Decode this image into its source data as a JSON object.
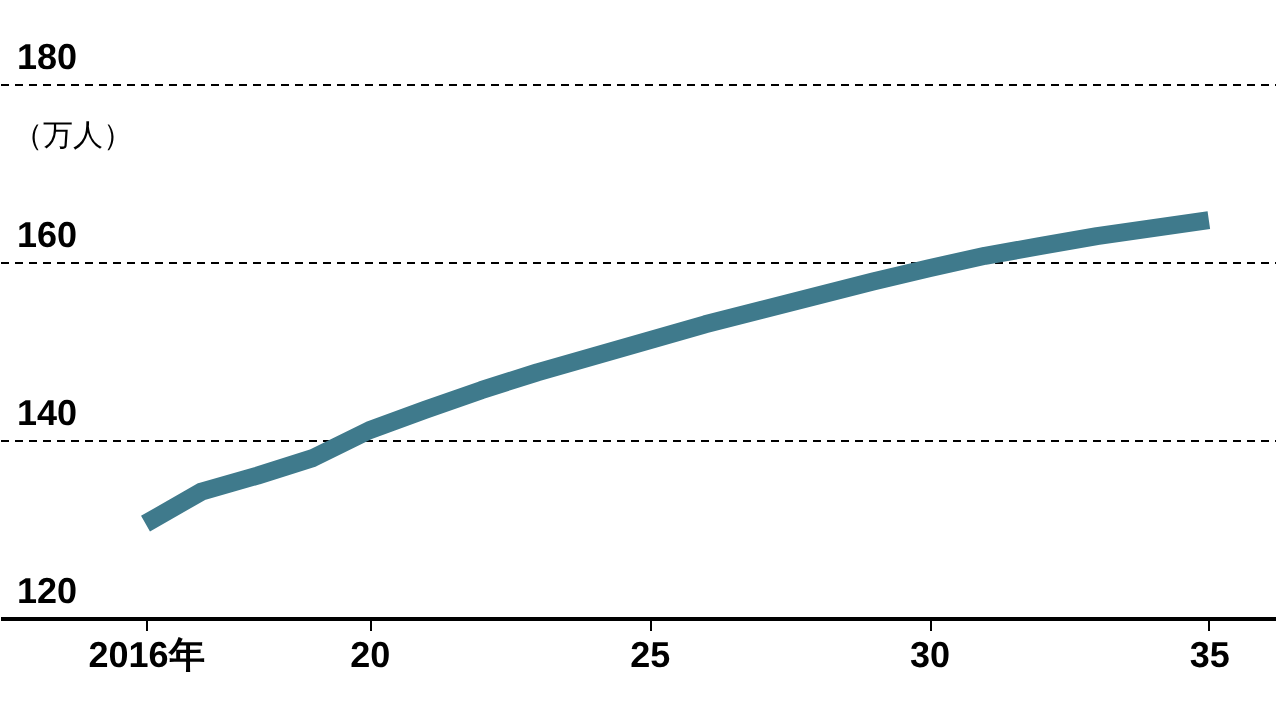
{
  "chart_data": {
    "type": "line",
    "ylabel": "（万人）",
    "x": [
      2016,
      2017,
      2018,
      2019,
      2020,
      2021,
      2022,
      2023,
      2024,
      2025,
      2026,
      2027,
      2028,
      2029,
      2030,
      2031,
      2032,
      2033,
      2034,
      2035
    ],
    "series": [
      {
        "color": "#3f7a8c",
        "values": [
          130.6,
          134.2,
          136,
          138,
          141.1,
          143.4,
          145.6,
          147.6,
          149.4,
          151.2,
          153,
          154.6,
          156.2,
          157.8,
          159.3,
          160.7,
          161.8,
          162.9,
          163.8,
          164.7
        ]
      }
    ],
    "xlim": [
      2013.4,
      2036.2
    ],
    "xticks": [
      {
        "value": 2016,
        "label": "2016年"
      },
      {
        "value": 2020,
        "label": "20"
      },
      {
        "value": 2025,
        "label": "25"
      },
      {
        "value": 2030,
        "label": "30"
      },
      {
        "value": 2035,
        "label": "35"
      }
    ],
    "ylim": [
      120,
      180
    ],
    "yticks": [
      120,
      140,
      160,
      180
    ],
    "grid": "y",
    "line_style": "solid",
    "legend": false
  }
}
